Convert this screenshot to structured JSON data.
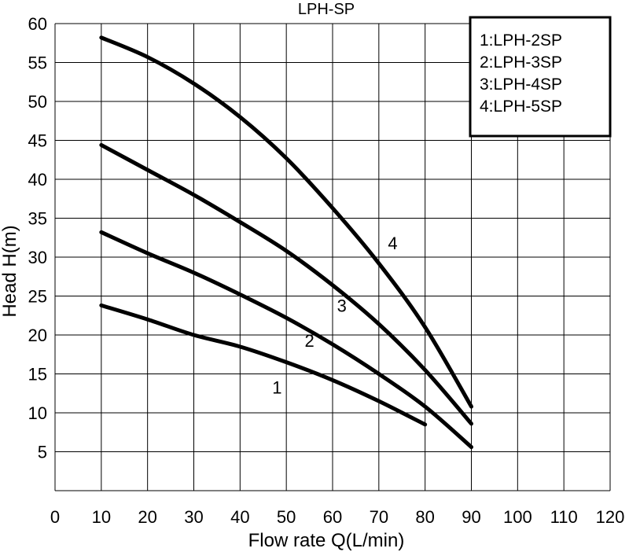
{
  "chart_data": {
    "type": "line",
    "title": "LPH-SP",
    "xlabel": "Flow rate Q(L/min)",
    "ylabel": "Head H(m)",
    "xlim": [
      0,
      120
    ],
    "ylim": [
      0,
      60
    ],
    "xticks": [
      0,
      10,
      20,
      30,
      40,
      50,
      60,
      70,
      80,
      90,
      100,
      110,
      120
    ],
    "yticks": [
      5,
      10,
      15,
      20,
      25,
      30,
      35,
      40,
      45,
      50,
      55,
      60
    ],
    "grid": true,
    "legend": {
      "placement": "top-right",
      "entries": [
        "1:LPH-2SP",
        "2:LPH-3SP",
        "3:LPH-4SP",
        "4:LPH-5SP"
      ]
    },
    "series": [
      {
        "name": "1",
        "x": [
          10,
          20,
          30,
          40,
          50,
          60,
          70,
          80
        ],
        "y": [
          23.8,
          22.0,
          20.0,
          18.5,
          16.5,
          14.2,
          11.5,
          8.5
        ]
      },
      {
        "name": "2",
        "x": [
          10,
          20,
          30,
          40,
          50,
          60,
          70,
          80,
          90
        ],
        "y": [
          33.2,
          30.5,
          28.0,
          25.2,
          22.2,
          18.8,
          15.0,
          10.8,
          5.6
        ]
      },
      {
        "name": "3",
        "x": [
          10,
          20,
          30,
          40,
          50,
          60,
          70,
          80,
          90
        ],
        "y": [
          44.4,
          41.2,
          38.0,
          34.5,
          30.8,
          26.4,
          21.4,
          15.5,
          8.6
        ]
      },
      {
        "name": "4",
        "x": [
          10,
          20,
          30,
          40,
          50,
          60,
          70,
          80,
          90
        ],
        "y": [
          58.2,
          55.7,
          52.3,
          48.0,
          42.7,
          36.3,
          29.2,
          21.0,
          10.8
        ]
      }
    ],
    "curve_labels": [
      {
        "text": "1",
        "x": 48,
        "y": 12.5
      },
      {
        "text": "2",
        "x": 55,
        "y": 18.5
      },
      {
        "text": "3",
        "x": 62,
        "y": 23.0
      },
      {
        "text": "4",
        "x": 73,
        "y": 31.0
      }
    ]
  }
}
